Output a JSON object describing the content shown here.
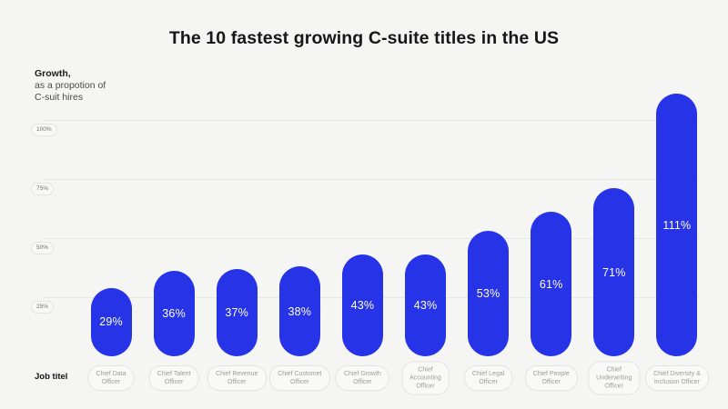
{
  "title": "The 10 fastest growing C-suite titles in the US",
  "y_axis": {
    "label_line1": "Growth,",
    "label_line2": "as a propotion of",
    "label_line3": "C-suit hires",
    "ticks": [
      {
        "value": 25,
        "label": "25%"
      },
      {
        "value": 50,
        "label": "50%"
      },
      {
        "value": 75,
        "label": "75%"
      },
      {
        "value": 100,
        "label": "100%"
      }
    ]
  },
  "x_axis": {
    "label": "Job titel"
  },
  "chart_data": {
    "type": "bar",
    "title": "The 10 fastest growing C-suite titles in the US",
    "xlabel": "Job titel",
    "ylabel": "Growth, as a propotion of C-suit hires",
    "ylim": [
      0,
      115
    ],
    "grid": "horizontal",
    "legend": "none",
    "categories": [
      "Chief Data Officer",
      "Chief Talent Officer",
      "Chief Revenue Officer",
      "Chief Customet Officer",
      "Chief Growth Officer",
      "Chief Accounting Officer",
      "Chief Legal Officer",
      "Chief People Officer",
      "Chief Underwriting Officer",
      "Chief Diversity & Inclusion Officer"
    ],
    "categories_lines": [
      [
        "Chief Data",
        "Officer"
      ],
      [
        "Chief Talent",
        "Officer"
      ],
      [
        "Chief Revenue",
        "Officer"
      ],
      [
        "Chief Customet",
        "Officer"
      ],
      [
        "Chief Growth",
        "Officer"
      ],
      [
        "Chief",
        "Accounting",
        "Officer"
      ],
      [
        "Chief Legal",
        "Officer"
      ],
      [
        "Chief People",
        "Officer"
      ],
      [
        "Chief",
        "Underwriting",
        "Officer"
      ],
      [
        "Chief Diversity &",
        "Inclusion Officer"
      ]
    ],
    "values": [
      29,
      36,
      37,
      38,
      43,
      43,
      53,
      61,
      71,
      111
    ],
    "value_labels": [
      "29%",
      "36%",
      "37%",
      "38%",
      "43%",
      "43%",
      "53%",
      "61%",
      "71%",
      "111%"
    ]
  },
  "colors": {
    "background": "#f5f5f4",
    "bar": "#2633e6",
    "bar_value_text": "#ffffff",
    "gridline": "#e7e7e4",
    "pill_border": "#e3e3e0",
    "tick_text": "#6e6e6c",
    "category_text": "#9c9c9a",
    "title_text": "#17171a"
  }
}
